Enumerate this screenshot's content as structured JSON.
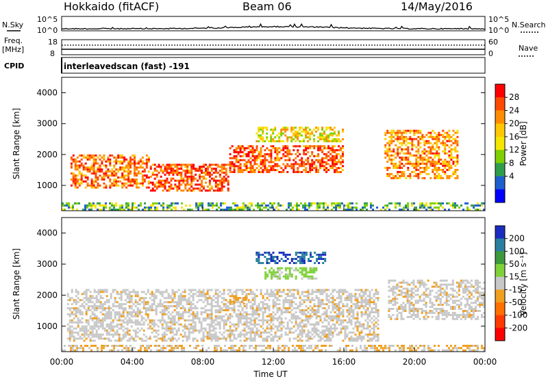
{
  "header": {
    "station": "Hokkaido (fitACF)",
    "beam": "Beam 06",
    "date": "14/May/2016"
  },
  "side_labels": {
    "nsky": "N.Sky",
    "nsearch": "N.Search",
    "freq": "Freq.",
    "mhz": "[MHz]",
    "nave": "Nave",
    "cpid": "CPID"
  },
  "ticks": {
    "top_left": [
      "10^5",
      "10^0"
    ],
    "top_right": [
      "10^5",
      "10^0"
    ],
    "freq_left": [
      "18",
      "8"
    ],
    "nave_right": [
      "60",
      "0"
    ],
    "range": [
      "1000",
      "2000",
      "3000",
      "4000"
    ],
    "time": [
      "00:00",
      "04:00",
      "08:00",
      "12:00",
      "16:00",
      "20:00",
      "00:00"
    ]
  },
  "cpid_text": "interleavedscan (fast) -191",
  "xlabel": "Time UT",
  "ylabel": "Slant Range [km]",
  "power_scale": {
    "label": "Power [dB]",
    "ticks": [
      "28",
      "24",
      "20",
      "16",
      "12",
      "8",
      "4"
    ],
    "colors": [
      "#ff0000",
      "#ff4a00",
      "#ff8c00",
      "#ffc800",
      "#f5e600",
      "#7ed000",
      "#2f9e4a",
      "#1e5fd0",
      "#0000ff"
    ]
  },
  "velocity_scale": {
    "label": "Velocity [m s⁻¹]",
    "ticks": [
      "200",
      "100",
      "50",
      "15",
      "-15",
      "-50",
      "-100",
      "-200"
    ],
    "colors": [
      "#1b2dbf",
      "#2a7fa0",
      "#3b9a3b",
      "#7fd23a",
      "#c8c8c8",
      "#f0a020",
      "#ff7000",
      "#ff3a00",
      "#ff0000"
    ]
  },
  "colors": {
    "ground_scatter": "#c8c8c8"
  },
  "chart_data": [
    {
      "type": "heatmap",
      "xlabel": "Time UT",
      "ylabel": "Slant Range [km]",
      "xlim": [
        0,
        24
      ],
      "ylim": [
        180,
        4500
      ],
      "colorbar": "Power [dB]",
      "regions": [
        {
          "t": [
            0.5,
            5.0
          ],
          "range": [
            900,
            2000
          ],
          "power": 26
        },
        {
          "t": [
            5.0,
            9.5
          ],
          "range": [
            800,
            1700
          ],
          "power": 28
        },
        {
          "t": [
            9.5,
            16.0
          ],
          "range": [
            1400,
            2300
          ],
          "power": 28
        },
        {
          "t": [
            11.0,
            16.0
          ],
          "range": [
            2400,
            2900
          ],
          "power": 18
        },
        {
          "t": [
            18.3,
            22.5
          ],
          "range": [
            1200,
            2800
          ],
          "power": 24
        },
        {
          "t": [
            0.0,
            24.0
          ],
          "range": [
            180,
            450
          ],
          "power": 10
        }
      ]
    },
    {
      "type": "heatmap",
      "xlabel": "Time UT",
      "ylabel": "Slant Range [km]",
      "xlim": [
        0,
        24
      ],
      "ylim": [
        180,
        4500
      ],
      "colorbar": "Velocity [m s⁻¹]",
      "regions": [
        {
          "t": [
            0.3,
            18.0
          ],
          "range": [
            500,
            2200
          ],
          "velocity": -10
        },
        {
          "t": [
            11.0,
            15.0
          ],
          "range": [
            3000,
            3400
          ],
          "velocity": 200
        },
        {
          "t": [
            11.5,
            14.5
          ],
          "range": [
            2500,
            2900
          ],
          "velocity": 20
        },
        {
          "t": [
            9.5,
            10.5
          ],
          "range": [
            1700,
            2000
          ],
          "velocity": -40
        },
        {
          "t": [
            18.5,
            24.0
          ],
          "range": [
            1200,
            2500
          ],
          "velocity": -10
        },
        {
          "t": [
            0.0,
            24.0
          ],
          "range": [
            180,
            400
          ],
          "velocity": -15
        }
      ]
    }
  ]
}
